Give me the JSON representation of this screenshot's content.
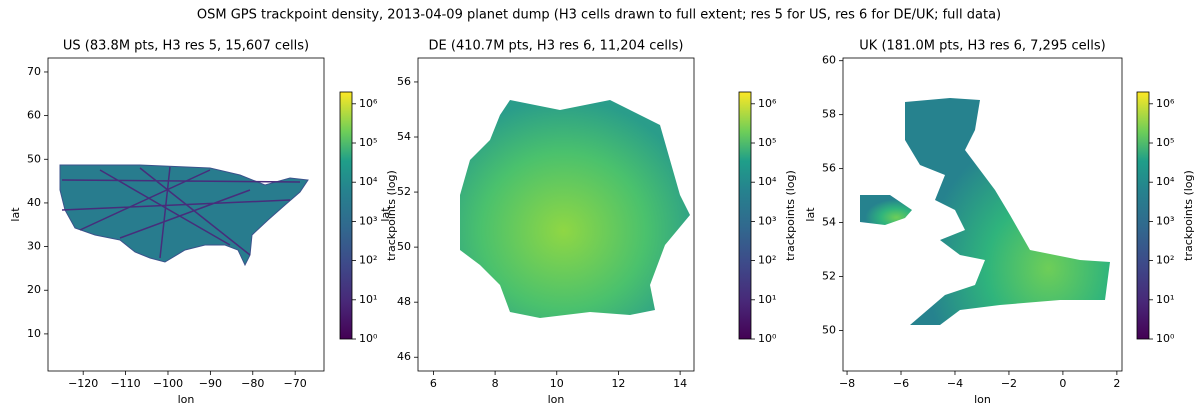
{
  "title": "OSM GPS trackpoint density, 2013-04-09 planet dump (H3 cells drawn to full extent; res 5 for US, res 6 for DE/UK; full data)",
  "chart_data": [
    {
      "type": "hexbin",
      "title": "US  (83.8M pts, H3 res 5, 15,607 cells)",
      "xlabel": "lon",
      "ylabel": "lat",
      "xlim": [
        -128.3,
        -63.2
      ],
      "ylim": [
        1.5,
        73.2
      ],
      "xticks": [
        {
          "value": -120,
          "label": "−120"
        },
        {
          "value": -110,
          "label": "−110"
        },
        {
          "value": -100,
          "label": "−100"
        },
        {
          "value": -90,
          "label": "−90"
        },
        {
          "value": -80,
          "label": "−80"
        },
        {
          "value": -70,
          "label": "−70"
        }
      ],
      "yticks": [
        10,
        20,
        30,
        40,
        50,
        60,
        70
      ],
      "colorbar": {
        "label": "trackpoints (log)",
        "lim": [
          1,
          2000000
        ],
        "log": true,
        "colormap": "viridis",
        "ticks": [
          {
            "value": 1,
            "label": "10⁰"
          },
          {
            "value": 10,
            "label": "10¹"
          },
          {
            "value": 100,
            "label": "10²"
          },
          {
            "value": 1000,
            "label": "10³"
          },
          {
            "value": 10000,
            "label": "10⁴"
          },
          {
            "value": 100000,
            "label": "10⁵"
          },
          {
            "value": 1000000,
            "label": "10⁶"
          }
        ]
      }
    },
    {
      "type": "hexbin",
      "title": "DE  (410.7M pts, H3 res 6, 11,204 cells)",
      "xlabel": "lon",
      "ylabel": "lat",
      "xlim": [
        5.5,
        14.45
      ],
      "ylim": [
        45.5,
        56.87
      ],
      "xticks": [
        6,
        8,
        10,
        12,
        14
      ],
      "yticks": [
        46,
        48,
        50,
        52,
        54,
        56
      ],
      "colorbar": {
        "label": "trackpoints (log)",
        "lim": [
          1,
          2000000
        ],
        "log": true,
        "colormap": "viridis",
        "ticks": [
          {
            "value": 1,
            "label": "10⁰"
          },
          {
            "value": 10,
            "label": "10¹"
          },
          {
            "value": 100,
            "label": "10²"
          },
          {
            "value": 1000,
            "label": "10³"
          },
          {
            "value": 10000,
            "label": "10⁴"
          },
          {
            "value": 100000,
            "label": "10⁵"
          },
          {
            "value": 1000000,
            "label": "10⁶"
          }
        ]
      }
    },
    {
      "type": "hexbin",
      "title": "UK  (181.0M pts, H3 res 6, 7,295 cells)",
      "xlabel": "lon",
      "ylabel": "lat",
      "xlim": [
        -8.15,
        2.19
      ],
      "ylim": [
        48.5,
        60.1
      ],
      "xticks": [
        {
          "value": -8,
          "label": "−8"
        },
        {
          "value": -6,
          "label": "−6"
        },
        {
          "value": -4,
          "label": "−4"
        },
        {
          "value": -2,
          "label": "−2"
        },
        0,
        2
      ],
      "yticks": [
        50,
        52,
        54,
        56,
        58,
        60
      ],
      "colorbar": {
        "label": "trackpoints (log)",
        "lim": [
          1,
          2000000
        ],
        "log": true,
        "colormap": "viridis",
        "ticks": [
          {
            "value": 1,
            "label": "10⁰"
          },
          {
            "value": 10,
            "label": "10¹"
          },
          {
            "value": 100,
            "label": "10²"
          },
          {
            "value": 1000,
            "label": "10³"
          },
          {
            "value": 10000,
            "label": "10⁴"
          },
          {
            "value": 100000,
            "label": "10⁵"
          },
          {
            "value": 1000000,
            "label": "10⁶"
          }
        ]
      }
    }
  ]
}
